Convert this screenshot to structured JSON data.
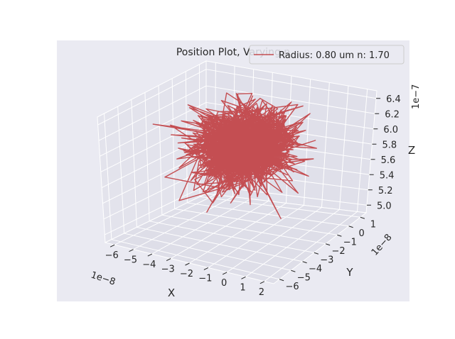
{
  "chart_data": {
    "type": "line",
    "title": "Position Plot, Varying n",
    "series": [
      {
        "name": "Radius: 0.80 um n: 1.70",
        "color": "#c44e52",
        "n_points": 1200,
        "x_center": -2.8e-08,
        "y_center": 0.0,
        "z_center": 5.6e-07,
        "spread_x": 1.1e-08,
        "spread_y": 1.2e-08,
        "spread_z": 2e-08
      }
    ],
    "axes": {
      "x": {
        "label": "X",
        "offset_text": "1e−8",
        "ticks": [
          "−6",
          "−5",
          "−4",
          "−3",
          "−2",
          "−1",
          "0",
          "1",
          "2"
        ],
        "range": [
          -6.5e-08,
          2.5e-08
        ]
      },
      "y": {
        "label": "Y",
        "offset_text": "1e−8",
        "ticks": [
          "−6",
          "−5",
          "−4",
          "−3",
          "−2",
          "−1",
          "0",
          "1"
        ],
        "range": [
          -6.5e-08,
          1.5e-08
        ]
      },
      "z": {
        "label": "Z",
        "offset_text": "1e−7",
        "ticks": [
          "5.0",
          "5.2",
          "5.4",
          "5.6",
          "5.8",
          "6.0",
          "6.2",
          "6.4"
        ],
        "range": [
          4.9e-07,
          6.5e-07
        ]
      }
    },
    "grid": true,
    "legend_position": "top-right",
    "style": "seaborn-darkgrid"
  }
}
